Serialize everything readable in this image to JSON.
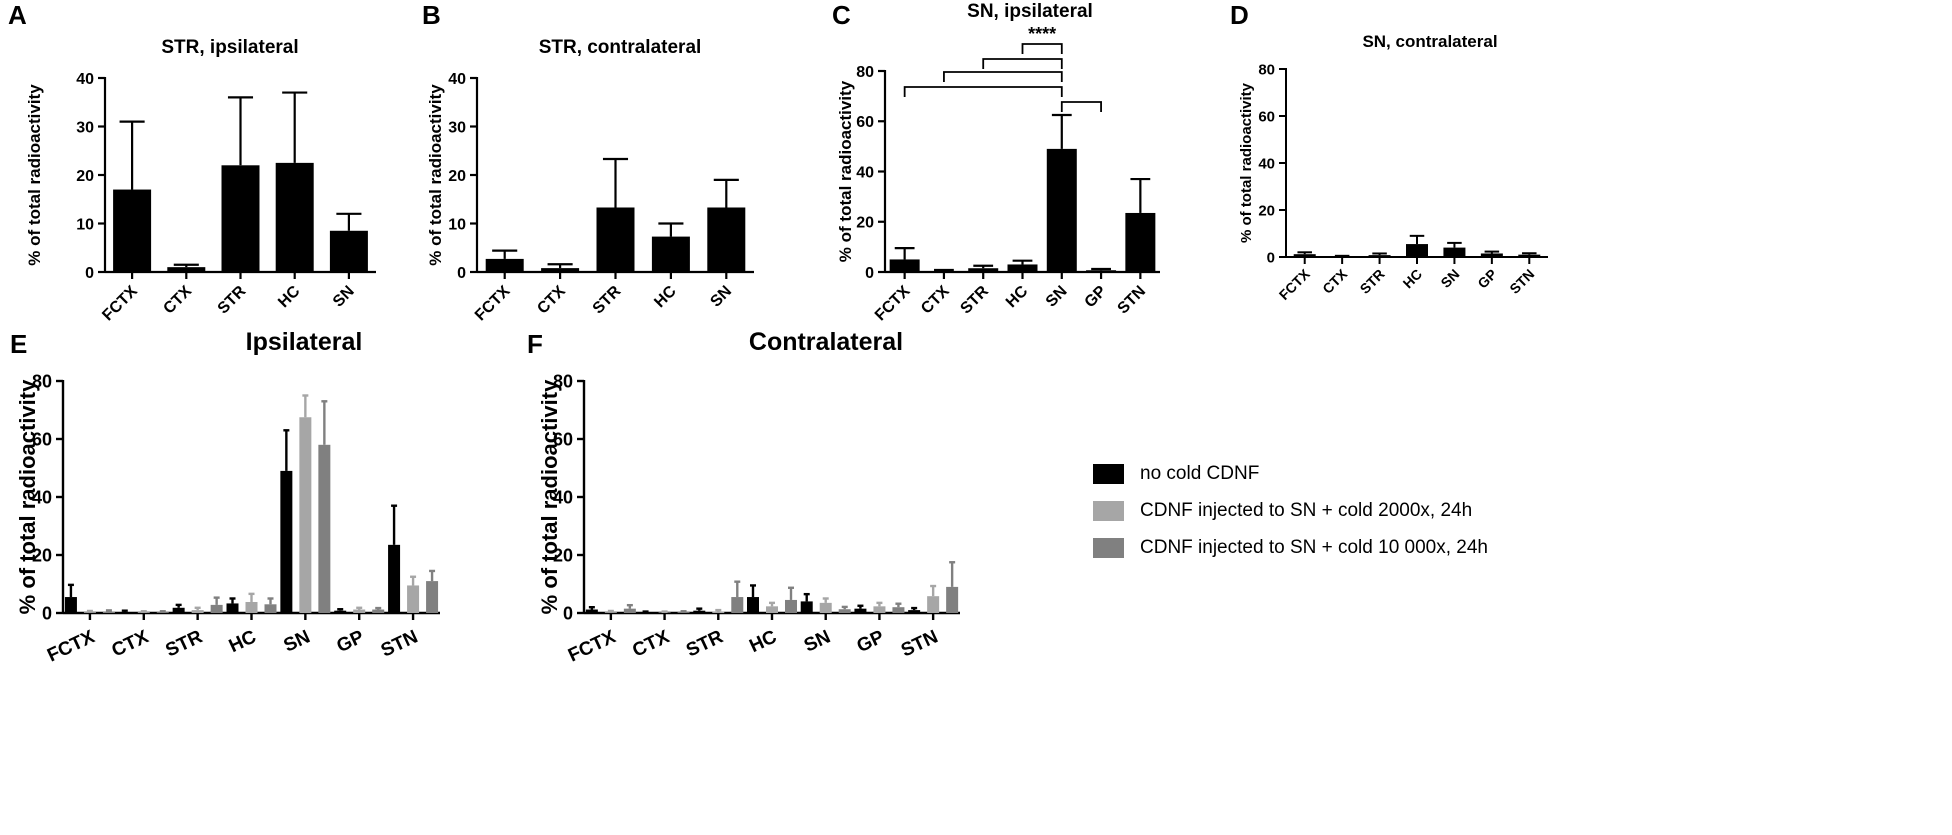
{
  "figure": {
    "colors": {
      "black": "#000000",
      "light_gray": "#a6a6a6",
      "mid_gray": "#808080"
    },
    "legend": [
      {
        "label": "no cold CDNF",
        "color": "#000000"
      },
      {
        "label": "CDNF injected to SN + cold 2000x, 24h",
        "color": "#a6a6a6"
      },
      {
        "label": "CDNF injected to SN + cold 10 000x, 24h",
        "color": "#808080"
      }
    ]
  },
  "chart_data": [
    {
      "panel": "A",
      "type": "bar",
      "title": "STR, ipsilateral",
      "xlabel": "",
      "ylabel": "% of total radioactivity",
      "ylim": [
        0,
        40
      ],
      "yticks": [
        0,
        10,
        20,
        30,
        40
      ],
      "categories": [
        "FCTX",
        "CTX",
        "STR",
        "HC",
        "SN"
      ],
      "series": [
        {
          "name": "no cold CDNF",
          "values": [
            17,
            1,
            22,
            22.5,
            8.5
          ],
          "errors": [
            14,
            0.5,
            14,
            14.5,
            3.5
          ]
        }
      ]
    },
    {
      "panel": "B",
      "type": "bar",
      "title": "STR, contralateral",
      "xlabel": "",
      "ylabel": "% of total radioactivity",
      "ylim": [
        0,
        40
      ],
      "yticks": [
        0,
        10,
        20,
        30,
        40
      ],
      "categories": [
        "FCTX",
        "CTX",
        "STR",
        "HC",
        "SN"
      ],
      "series": [
        {
          "name": "no cold CDNF",
          "values": [
            2.7,
            0.8,
            13.3,
            7.3,
            13.3
          ],
          "errors": [
            1.7,
            0.8,
            10,
            2.7,
            5.7
          ]
        }
      ]
    },
    {
      "panel": "C",
      "type": "bar",
      "title": "SN, ipsilateral",
      "xlabel": "",
      "ylabel": "% of total radioactivity",
      "ylim": [
        0,
        80
      ],
      "yticks": [
        0,
        20,
        40,
        60,
        80
      ],
      "categories": [
        "FCTX",
        "CTX",
        "STR",
        "HC",
        "SN",
        "GP",
        "STN"
      ],
      "series": [
        {
          "name": "no cold CDNF",
          "values": [
            5,
            0.3,
            1.5,
            3,
            49,
            0.7,
            23.5
          ],
          "errors": [
            4.5,
            0.5,
            1,
            1.5,
            13.5,
            0.5,
            13.5
          ]
        }
      ],
      "annotations": {
        "significance": "****",
        "brackets": [
          {
            "from": "FCTX",
            "to": "SN"
          },
          {
            "from": "CTX",
            "to": "SN"
          },
          {
            "from": "STR",
            "to": "SN"
          },
          {
            "from": "HC",
            "to": "SN"
          },
          {
            "from": "SN",
            "to": "GP"
          }
        ]
      }
    },
    {
      "panel": "D",
      "type": "bar",
      "title": "SN, contralateral",
      "xlabel": "",
      "ylabel": "% of total radioactivity",
      "ylim": [
        0,
        80
      ],
      "yticks": [
        0,
        20,
        40,
        60,
        80
      ],
      "categories": [
        "FCTX",
        "CTX",
        "STR",
        "HC",
        "SN",
        "GP",
        "STN"
      ],
      "series": [
        {
          "name": "no cold CDNF",
          "values": [
            1.2,
            0.2,
            0.8,
            5.5,
            4,
            1.5,
            1
          ],
          "errors": [
            0.8,
            0.3,
            0.7,
            3.5,
            2,
            0.8,
            0.6
          ]
        }
      ]
    },
    {
      "panel": "E",
      "type": "bar",
      "title": "Ipsilateral",
      "xlabel": "",
      "ylabel": "% of total radioactivity",
      "ylim": [
        0,
        80
      ],
      "yticks": [
        0,
        20,
        40,
        60,
        80
      ],
      "categories": [
        "FCTX",
        "CTX",
        "STR",
        "HC",
        "SN",
        "GP",
        "STN"
      ],
      "series": [
        {
          "name": "no cold CDNF",
          "values": [
            5.5,
            0.3,
            1.8,
            3.3,
            49,
            0.8,
            23.5
          ],
          "errors": [
            4.2,
            0.5,
            1,
            1.7,
            14,
            0.5,
            13.5
          ]
        },
        {
          "name": "CDNF injected to SN + cold 2000x, 24h",
          "values": [
            0.3,
            0.3,
            1,
            3.8,
            67.5,
            1.2,
            9.5
          ],
          "errors": [
            0.4,
            0.3,
            0.8,
            2.8,
            7.5,
            0.6,
            3
          ]
        },
        {
          "name": "CDNF injected to SN + cold 10 000x, 24h",
          "values": [
            0.5,
            0.3,
            2.8,
            3,
            58,
            1.2,
            11
          ],
          "errors": [
            0.4,
            0.3,
            2.5,
            2,
            15,
            0.5,
            3.5
          ]
        }
      ]
    },
    {
      "panel": "F",
      "type": "bar",
      "title": "Contralateral",
      "xlabel": "",
      "ylabel": "% of total radioactivity",
      "ylim": [
        0,
        80
      ],
      "yticks": [
        0,
        20,
        40,
        60,
        80
      ],
      "categories": [
        "FCTX",
        "CTX",
        "STR",
        "HC",
        "SN",
        "GP",
        "STN"
      ],
      "series": [
        {
          "name": "no cold CDNF",
          "values": [
            1.2,
            0.2,
            0.8,
            5.5,
            4,
            1.5,
            1
          ],
          "errors": [
            0.8,
            0.3,
            0.7,
            4,
            2.5,
            1,
            0.7
          ]
        },
        {
          "name": "CDNF injected to SN + cold 2000x, 24h",
          "values": [
            0.3,
            0.2,
            0.5,
            2.3,
            3.5,
            2.3,
            5.8
          ],
          "errors": [
            0.4,
            0.3,
            0.5,
            1.2,
            1.5,
            1.2,
            3.5
          ]
        },
        {
          "name": "CDNF injected to SN + cold 10 000x, 24h",
          "values": [
            1.5,
            0.3,
            5.5,
            4.5,
            1.3,
            2,
            9
          ],
          "errors": [
            1.2,
            0.3,
            5.3,
            4.2,
            0.8,
            1.2,
            8.5
          ]
        }
      ]
    }
  ]
}
